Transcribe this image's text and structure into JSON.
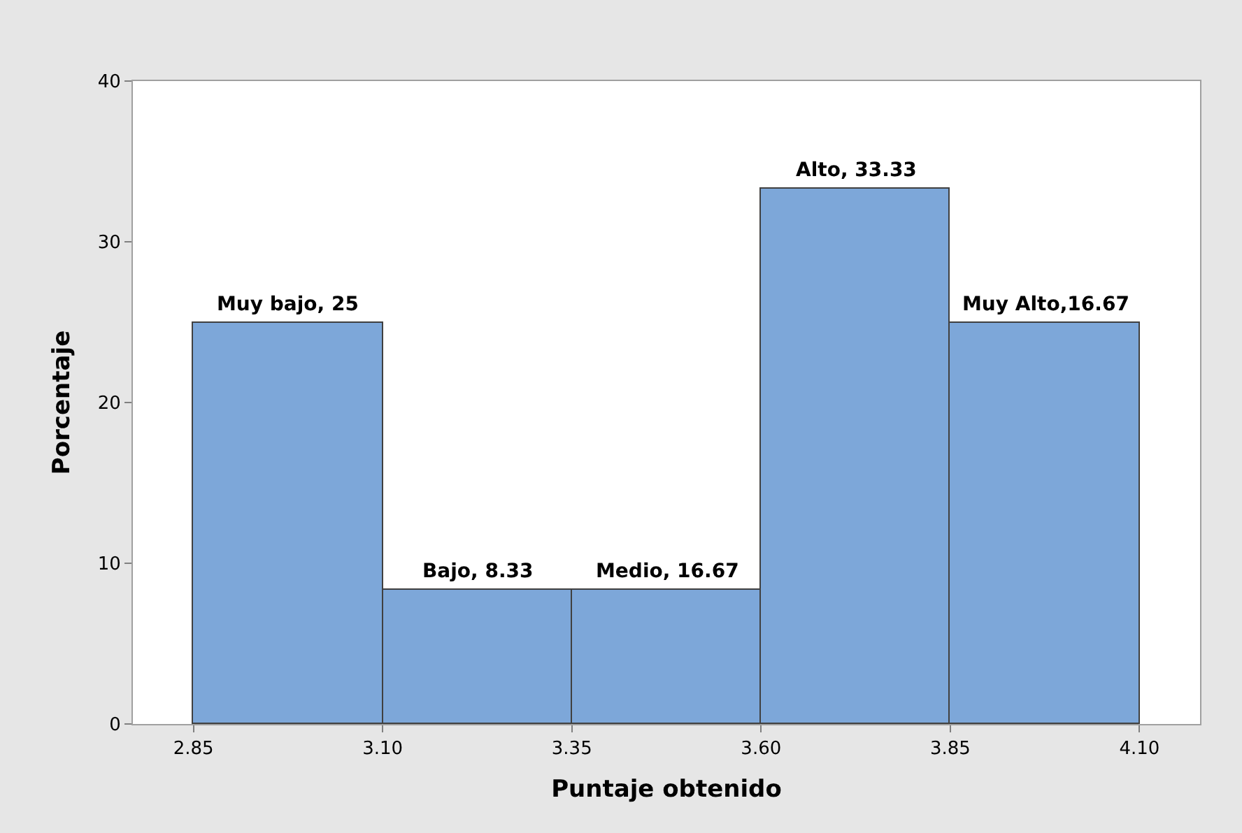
{
  "chart_data": {
    "type": "histogram",
    "xlabel": "Puntaje obtenido",
    "ylabel": "Porcentaje",
    "bins": [
      2.85,
      3.1,
      3.35,
      3.6,
      3.85,
      4.1
    ],
    "values": [
      25,
      8.33,
      8.33,
      33.33,
      25
    ],
    "annotations": [
      {
        "text": "Muy bajo, 25",
        "x": 2.975,
        "y": 25
      },
      {
        "text": "Bajo, 8.33",
        "x": 3.225,
        "y": 8.33
      },
      {
        "text": "Medio, 16.67",
        "x": 3.475,
        "y": 8.33
      },
      {
        "text": "Alto, 33.33",
        "x": 3.725,
        "y": 33.33
      },
      {
        "text": "Muy Alto,16.67",
        "x": 3.975,
        "y": 25
      }
    ],
    "color": "#7da7d9",
    "xlim": [
      2.77,
      4.18
    ],
    "xticks": [
      {
        "value": 2.85,
        "label": "2.85"
      },
      {
        "value": 3.1,
        "label": "3.10"
      },
      {
        "value": 3.35,
        "label": "3.35"
      },
      {
        "value": 3.6,
        "label": "3.60"
      },
      {
        "value": 3.85,
        "label": "3.85"
      },
      {
        "value": 4.1,
        "label": "4.10"
      }
    ],
    "ylim": [
      0,
      40
    ],
    "yticks": [
      0,
      10,
      20,
      30,
      40
    ]
  }
}
